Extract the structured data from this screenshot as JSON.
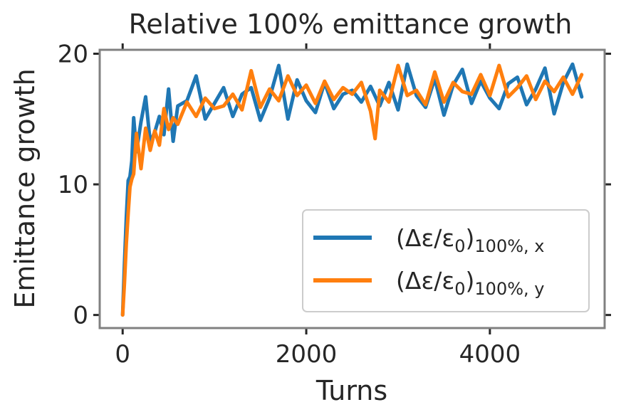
{
  "chart_data": {
    "type": "line",
    "title": "Relative 100% emittance growth",
    "xlabel": "Turns",
    "ylabel": "Emittance growth",
    "xlim": [
      -250,
      5250
    ],
    "ylim": [
      -1,
      20.3
    ],
    "xticks": [
      0,
      2000,
      4000
    ],
    "yticks": [
      0,
      10,
      20
    ],
    "grid": false,
    "legend_position": "lower-right",
    "series": [
      {
        "name": "(Δε/ε0)100%,x",
        "name_main": "(Δε/ε",
        "name_sub0": "0",
        "name_close": ")",
        "name_sub": "100%, x",
        "color": "#1f77b4",
        "x": [
          0,
          20,
          40,
          60,
          80,
          100,
          120,
          150,
          200,
          250,
          300,
          350,
          400,
          450,
          500,
          550,
          600,
          700,
          800,
          900,
          1000,
          1100,
          1200,
          1300,
          1400,
          1500,
          1600,
          1700,
          1800,
          1900,
          2000,
          2100,
          2200,
          2300,
          2400,
          2500,
          2600,
          2700,
          2800,
          2900,
          3000,
          3100,
          3200,
          3300,
          3400,
          3500,
          3600,
          3700,
          3800,
          3900,
          4000,
          4100,
          4200,
          4300,
          4400,
          4500,
          4600,
          4700,
          4800,
          4900,
          5000
        ],
        "values": [
          0.0,
          4.0,
          7.5,
          10.3,
          10.6,
          11.8,
          15.1,
          12.5,
          14.8,
          16.7,
          13.2,
          14.0,
          15.2,
          13.8,
          17.3,
          13.3,
          16.0,
          16.4,
          18.3,
          15.0,
          16.2,
          17.4,
          15.2,
          16.9,
          17.4,
          14.9,
          16.6,
          19.1,
          15.0,
          18.0,
          16.4,
          15.5,
          17.8,
          15.8,
          16.9,
          17.2,
          16.3,
          17.5,
          16.0,
          17.8,
          15.7,
          19.2,
          16.8,
          15.9,
          18.1,
          15.3,
          17.6,
          18.8,
          16.2,
          17.9,
          16.6,
          15.8,
          17.7,
          18.2,
          16.1,
          17.3,
          18.9,
          15.4,
          17.8,
          19.2,
          16.7
        ]
      },
      {
        "name": "(Δε/ε0)100%,y",
        "name_main": "(Δε/ε",
        "name_sub0": "0",
        "name_close": ")",
        "name_sub": "100%, y",
        "color": "#ff7f0e",
        "x": [
          0,
          20,
          40,
          60,
          80,
          100,
          120,
          150,
          200,
          250,
          300,
          350,
          400,
          450,
          500,
          550,
          600,
          700,
          800,
          900,
          1000,
          1100,
          1200,
          1300,
          1400,
          1500,
          1600,
          1700,
          1800,
          1900,
          2000,
          2100,
          2200,
          2300,
          2400,
          2500,
          2600,
          2700,
          2750,
          2800,
          2900,
          3000,
          3100,
          3200,
          3300,
          3400,
          3500,
          3600,
          3700,
          3800,
          3900,
          4000,
          4100,
          4200,
          4300,
          4400,
          4500,
          4600,
          4700,
          4800,
          4900,
          5000
        ],
        "values": [
          0.0,
          2.5,
          5.5,
          7.8,
          9.8,
          10.4,
          10.8,
          13.9,
          11.2,
          14.3,
          12.6,
          14.1,
          13.0,
          15.8,
          14.2,
          15.1,
          14.6,
          16.3,
          15.2,
          16.6,
          15.8,
          16.0,
          16.9,
          15.7,
          18.7,
          15.9,
          17.3,
          16.4,
          18.3,
          16.8,
          17.6,
          16.2,
          17.9,
          16.5,
          17.4,
          16.9,
          17.8,
          15.6,
          13.5,
          17.2,
          16.3,
          19.1,
          16.8,
          17.2,
          16.1,
          18.6,
          16.3,
          17.8,
          17.1,
          16.9,
          18.4,
          16.8,
          19.1,
          16.7,
          17.4,
          18.3,
          16.5,
          17.9,
          17.1,
          18.2,
          16.9,
          18.4
        ]
      }
    ]
  }
}
